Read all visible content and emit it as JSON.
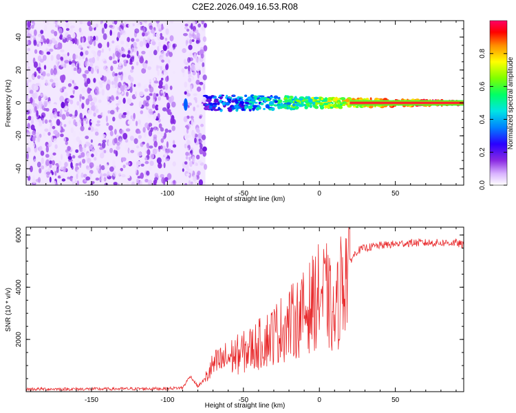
{
  "title": "C2E2.2026.049.16.53.R08",
  "chart_data": [
    {
      "type": "heatmap",
      "name": "spectrogram",
      "xlabel": "Height of straight line (km)",
      "ylabel": "Frequency (Hz)",
      "xlim": [
        -193,
        95
      ],
      "ylim": [
        -50,
        50
      ],
      "x_ticks": [
        -150,
        -100,
        -50,
        0,
        50
      ],
      "y_ticks": [
        -40,
        -20,
        0,
        20,
        40
      ],
      "colorbar": {
        "label": "Normalized spectral amplitude",
        "range": [
          0,
          1
        ],
        "ticks": [
          0.0,
          0.2,
          0.4,
          0.6,
          0.8
        ],
        "colormap": [
          "#ffffff",
          "#d9b3ff",
          "#8a2be2",
          "#5a00d9",
          "#0000ff",
          "#00bfff",
          "#00ff7f",
          "#7fff00",
          "#ffff00",
          "#ff8c00",
          "#ff0000",
          "#ff0066"
        ]
      },
      "features": [
        {
          "description": "noise",
          "x_range": [
            -193,
            -75
          ],
          "freq_range": [
            -50,
            50
          ]
        },
        {
          "description": "signal",
          "x_range": [
            -75,
            95
          ],
          "center_freq": 0
        }
      ]
    },
    {
      "type": "line",
      "name": "snr",
      "xlabel": "Height of straight line (km)",
      "ylabel": "SNR (10 * v/v)",
      "xlim": [
        -193,
        95
      ],
      "ylim": [
        0,
        6300
      ],
      "x_ticks": [
        -150,
        -100,
        -50,
        0,
        50
      ],
      "y_ticks": [
        2000,
        4000,
        6000
      ],
      "color": "#e8282a",
      "x": [
        -193,
        -150,
        -100,
        -90,
        -85,
        -80,
        -75,
        -70,
        -60,
        -50,
        -40,
        -30,
        -20,
        -10,
        0,
        5,
        10,
        15,
        20,
        25,
        30,
        40,
        50,
        60,
        70,
        80,
        90,
        95
      ],
      "y": [
        100,
        100,
        120,
        150,
        600,
        200,
        500,
        1000,
        1300,
        1500,
        1800,
        2200,
        2600,
        3000,
        3700,
        3700,
        2600,
        4400,
        5000,
        5400,
        5500,
        5600,
        5650,
        5700,
        5700,
        5700,
        5700,
        5600
      ]
    }
  ]
}
